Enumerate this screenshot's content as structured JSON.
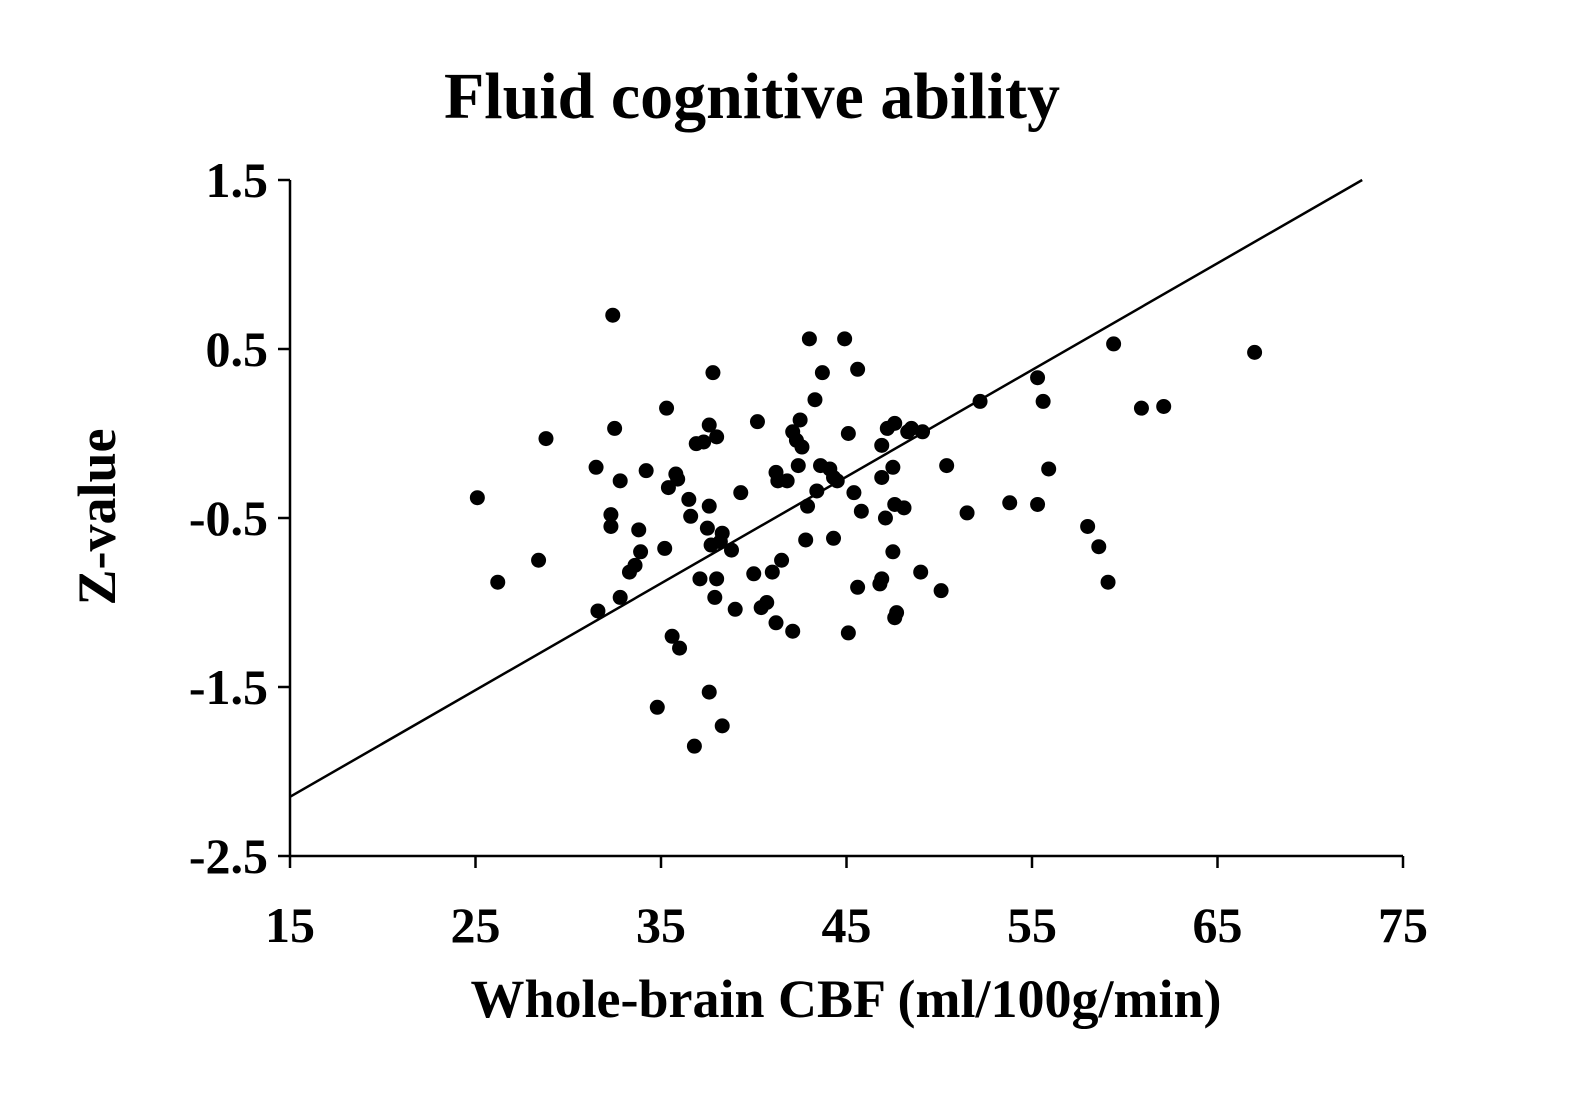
{
  "chart_data": {
    "type": "scatter",
    "title": "Fluid cognitive ability",
    "xlabel": "Whole-brain CBF (ml/100g/min)",
    "ylabel": "Z-value",
    "xlim": [
      15,
      75
    ],
    "ylim": [
      -2.5,
      1.5
    ],
    "xticks": [
      15,
      25,
      35,
      45,
      55,
      65,
      75
    ],
    "xtick_labels": [
      "15",
      "25",
      "35",
      "45",
      "55",
      "65",
      "75"
    ],
    "yticks": [
      1.5,
      0.5,
      -0.5,
      -1.5,
      -2.5
    ],
    "ytick_labels": [
      "1.5",
      "0.5",
      "-0.5",
      "-1.5",
      "-2.5"
    ],
    "grid": false,
    "marker_color": "#000000",
    "fit_line": {
      "x": [
        15,
        72.8
      ],
      "y": [
        -2.15,
        1.5
      ]
    },
    "points": [
      [
        25.1,
        -0.38
      ],
      [
        26.2,
        -0.88
      ],
      [
        28.4,
        -0.75
      ],
      [
        28.8,
        -0.03
      ],
      [
        31.5,
        -0.2
      ],
      [
        31.6,
        -1.05
      ],
      [
        32.3,
        -0.48
      ],
      [
        32.3,
        -0.55
      ],
      [
        32.4,
        0.7
      ],
      [
        32.5,
        0.03
      ],
      [
        32.8,
        -0.28
      ],
      [
        32.8,
        -0.97
      ],
      [
        33.3,
        -0.82
      ],
      [
        33.6,
        -0.78
      ],
      [
        33.8,
        -0.57
      ],
      [
        33.9,
        -0.7
      ],
      [
        34.2,
        -0.22
      ],
      [
        34.8,
        -1.62
      ],
      [
        35.2,
        -0.68
      ],
      [
        35.3,
        0.15
      ],
      [
        35.4,
        -0.32
      ],
      [
        35.6,
        -1.2
      ],
      [
        35.8,
        -0.24
      ],
      [
        35.9,
        -0.27
      ],
      [
        36.0,
        -1.27
      ],
      [
        36.5,
        -0.39
      ],
      [
        36.6,
        -0.49
      ],
      [
        36.8,
        -1.85
      ],
      [
        36.9,
        -0.06
      ],
      [
        37.1,
        -0.86
      ],
      [
        37.3,
        -0.05
      ],
      [
        37.5,
        -0.56
      ],
      [
        37.6,
        -0.43
      ],
      [
        37.6,
        0.05
      ],
      [
        37.6,
        -1.53
      ],
      [
        37.7,
        -0.66
      ],
      [
        37.8,
        0.36
      ],
      [
        37.9,
        -0.97
      ],
      [
        38.0,
        -0.86
      ],
      [
        38.0,
        -0.02
      ],
      [
        38.2,
        -0.64
      ],
      [
        38.3,
        -0.59
      ],
      [
        38.3,
        -1.73
      ],
      [
        38.8,
        -0.69
      ],
      [
        39.0,
        -1.04
      ],
      [
        39.3,
        -0.35
      ],
      [
        40.0,
        -0.83
      ],
      [
        40.2,
        0.07
      ],
      [
        40.4,
        -1.03
      ],
      [
        40.7,
        -1.0
      ],
      [
        41.0,
        -0.82
      ],
      [
        41.2,
        -0.23
      ],
      [
        41.2,
        -1.12
      ],
      [
        41.3,
        -0.28
      ],
      [
        41.5,
        -0.75
      ],
      [
        41.8,
        -0.28
      ],
      [
        42.1,
        -1.17
      ],
      [
        42.1,
        0.01
      ],
      [
        42.3,
        -0.04
      ],
      [
        42.4,
        -0.19
      ],
      [
        42.5,
        0.08
      ],
      [
        42.6,
        -0.08
      ],
      [
        42.8,
        -0.63
      ],
      [
        42.9,
        -0.43
      ],
      [
        43.0,
        0.56
      ],
      [
        43.3,
        0.2
      ],
      [
        43.4,
        -0.34
      ],
      [
        43.6,
        -0.19
      ],
      [
        43.7,
        0.36
      ],
      [
        44.1,
        -0.21
      ],
      [
        44.3,
        -0.26
      ],
      [
        44.3,
        -0.62
      ],
      [
        44.5,
        -0.28
      ],
      [
        44.9,
        0.56
      ],
      [
        45.1,
        0.0
      ],
      [
        45.1,
        -1.18
      ],
      [
        45.4,
        -0.35
      ],
      [
        45.6,
        -0.91
      ],
      [
        45.6,
        0.38
      ],
      [
        45.8,
        -0.46
      ],
      [
        46.8,
        -0.89
      ],
      [
        46.9,
        -0.86
      ],
      [
        46.9,
        -0.07
      ],
      [
        46.9,
        -0.26
      ],
      [
        47.1,
        -0.5
      ],
      [
        47.2,
        0.03
      ],
      [
        47.5,
        -0.2
      ],
      [
        47.5,
        -0.7
      ],
      [
        47.6,
        -1.09
      ],
      [
        47.6,
        0.06
      ],
      [
        47.6,
        -0.42
      ],
      [
        47.7,
        -1.06
      ],
      [
        48.1,
        -0.44
      ],
      [
        48.3,
        0.01
      ],
      [
        48.5,
        0.03
      ],
      [
        49.0,
        -0.82
      ],
      [
        49.1,
        0.01
      ],
      [
        50.1,
        -0.93
      ],
      [
        50.4,
        -0.19
      ],
      [
        51.5,
        -0.47
      ],
      [
        52.2,
        0.19
      ],
      [
        53.8,
        -0.41
      ],
      [
        55.3,
        -0.42
      ],
      [
        55.3,
        0.33
      ],
      [
        55.6,
        0.19
      ],
      [
        55.9,
        -0.21
      ],
      [
        58.0,
        -0.55
      ],
      [
        58.6,
        -0.67
      ],
      [
        59.1,
        -0.88
      ],
      [
        59.4,
        0.53
      ],
      [
        60.9,
        0.15
      ],
      [
        62.1,
        0.16
      ],
      [
        67.0,
        0.48
      ]
    ]
  }
}
